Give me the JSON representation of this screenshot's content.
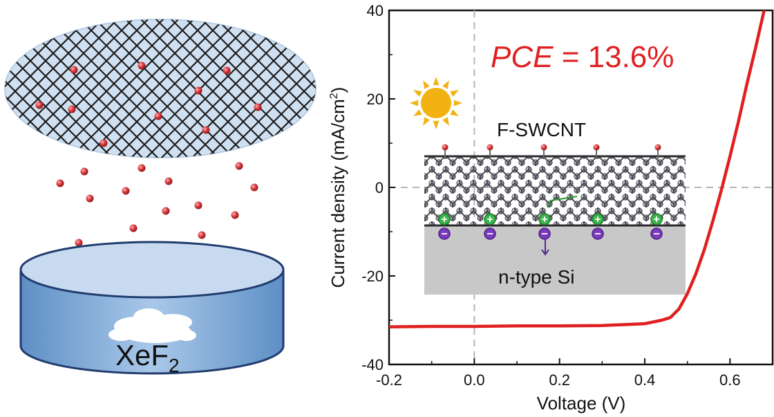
{
  "left_panel": {
    "source_label": "XeF",
    "source_label_sub": "2"
  },
  "chart_data": {
    "type": "line",
    "xlabel": "Voltage (V)",
    "ylabel_prefix": "Current density (mA/cm",
    "ylabel_sup": "2",
    "ylabel_suffix": ")",
    "xlim": [
      -0.2,
      0.7
    ],
    "ylim": [
      -40,
      40
    ],
    "x_ticks": [
      -0.2,
      0.0,
      0.2,
      0.4,
      0.6
    ],
    "x_tick_labels": [
      "-0.2",
      "0.0",
      "0.2",
      "0.4",
      "0.6"
    ],
    "y_ticks": [
      -40,
      -20,
      0,
      20,
      40
    ],
    "y_tick_labels": [
      "-40",
      "-20",
      "0",
      "20",
      "40"
    ],
    "reference_lines": {
      "x": 0,
      "y": 0
    },
    "annotation": {
      "italic_part": "PCE",
      "rest": " = 13.6%"
    },
    "series": [
      {
        "color": "#e02020",
        "x": [
          -0.2,
          -0.1,
          0.0,
          0.1,
          0.2,
          0.3,
          0.4,
          0.44,
          0.46,
          0.48,
          0.5,
          0.52,
          0.54,
          0.56,
          0.58,
          0.6,
          0.62,
          0.64,
          0.66,
          0.68
        ],
        "y": [
          -31.5,
          -31.4,
          -31.4,
          -31.3,
          -31.3,
          -31.2,
          -30.8,
          -30.0,
          -29.4,
          -27.5,
          -24.0,
          -19.5,
          -14.0,
          -7.5,
          -0.5,
          7.0,
          15.0,
          23.5,
          31.5,
          40.0
        ]
      }
    ]
  },
  "inset": {
    "title": "F-SWCNT",
    "substrate_label": "n-type Si"
  },
  "colors": {
    "curve": "#e02020",
    "pce_text": "#e02020",
    "dish_body": "#7fa9d6",
    "dish_rim": "#1f3b6e",
    "ellipse_fill": "#cfe0f1",
    "fluorine": "#c8323a",
    "sun": "#f2b312",
    "substrate": "#c8c8c8"
  }
}
